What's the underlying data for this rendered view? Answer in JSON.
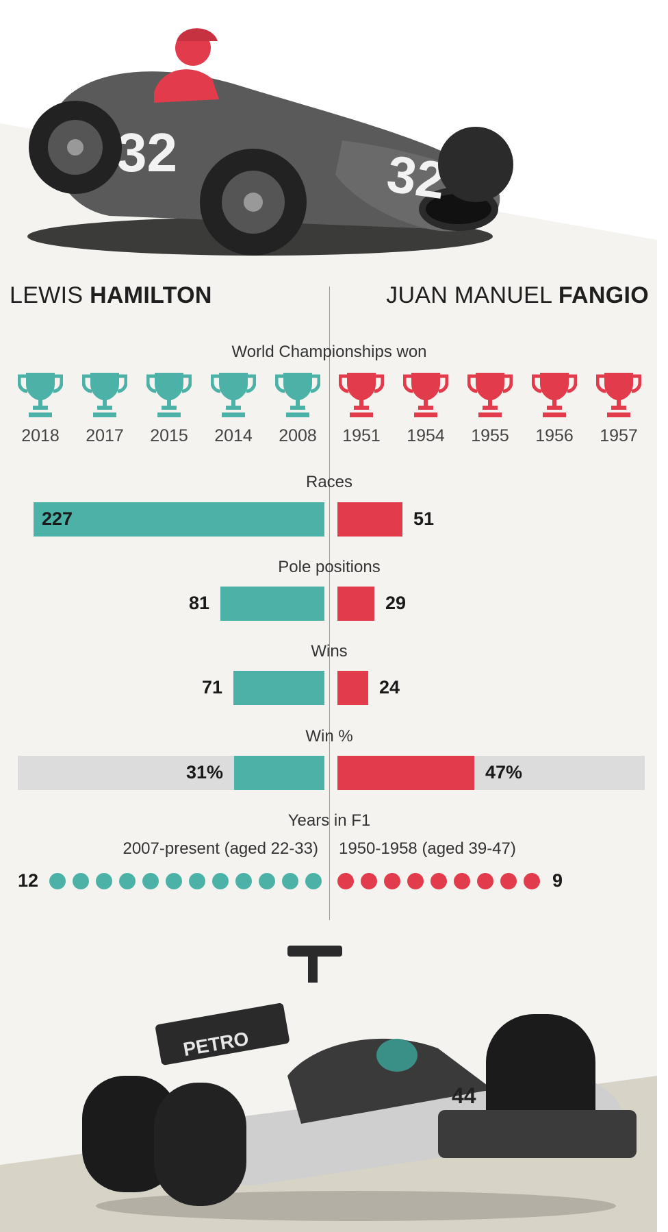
{
  "colors": {
    "hamilton": "#4cb1a7",
    "fangio": "#e23b4c",
    "track": "#dcdcdc",
    "panel": "#f4f3ef",
    "ground": "#d8d3c7"
  },
  "images": {
    "top": "vintage Maserati 250F number 32 with driver in red",
    "bottom": "Mercedes F1 car with PETRONAS livery, number 44"
  },
  "drivers": {
    "left": {
      "first": "LEWIS",
      "last": "HAMILTON"
    },
    "right": {
      "first": "JUAN MANUEL",
      "last": "FANGIO"
    }
  },
  "chart_data": {
    "type": "bar",
    "title": "",
    "series": [
      {
        "name": "LEWIS HAMILTON",
        "color": "#4cb1a7"
      },
      {
        "name": "JUAN MANUEL FANGIO",
        "color": "#e23b4c"
      }
    ],
    "championships": {
      "title": "World Championships won",
      "left_years": [
        "2018",
        "2017",
        "2015",
        "2014",
        "2008"
      ],
      "right_years": [
        "1951",
        "1954",
        "1955",
        "1956",
        "1957"
      ]
    },
    "races": {
      "title": "Races",
      "left": 227,
      "right": 51,
      "max": 227,
      "left_label": "227",
      "right_label": "51"
    },
    "poles": {
      "title": "Pole positions",
      "left": 81,
      "right": 29,
      "max": 227,
      "left_label": "81",
      "right_label": "29"
    },
    "wins": {
      "title": "Wins",
      "left": 71,
      "right": 24,
      "max": 227,
      "left_label": "71",
      "right_label": "24"
    },
    "win_pct": {
      "title": "Win %",
      "left": 31,
      "right": 47,
      "max": 100,
      "left_label": "31%",
      "right_label": "47%"
    },
    "years": {
      "title": "Years in F1",
      "left_span": "2007-present (aged 22-33)",
      "right_span": "1950-1958 (aged 39-47)",
      "left": 12,
      "right": 9,
      "left_label": "12",
      "right_label": "9"
    }
  }
}
